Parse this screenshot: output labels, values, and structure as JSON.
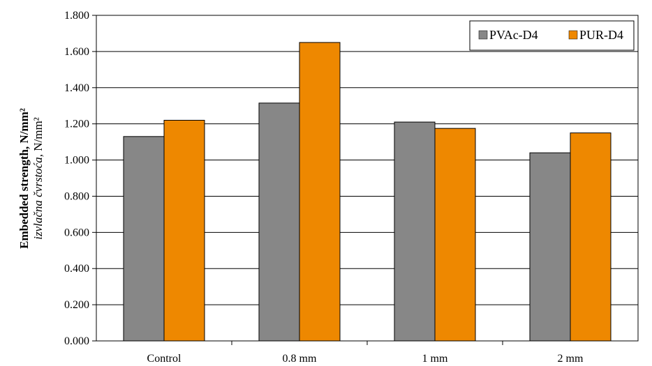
{
  "chart_data": {
    "type": "bar",
    "categories": [
      "Control",
      "0.8 mm",
      "1 mm",
      "2 mm"
    ],
    "series": [
      {
        "name": "PVAc-D4",
        "values": [
          1.13,
          1.315,
          1.21,
          1.04
        ],
        "color": "#878787"
      },
      {
        "name": "PUR-D4",
        "values": [
          1.22,
          1.65,
          1.175,
          1.15
        ],
        "color": "#ee8800"
      }
    ],
    "ylabel_bold": "Embedded strength, N/mm²",
    "ylabel_italic_word": "izvlačna čvrstoća,",
    "ylabel_unit": " N/mm²",
    "ylim": [
      0,
      1.8
    ],
    "yticks": [
      0,
      0.2,
      0.4,
      0.6,
      0.8,
      1.0,
      1.2,
      1.4,
      1.6,
      1.8
    ],
    "ytick_labels": [
      "0.000",
      "0.200",
      "0.400",
      "0.600",
      "0.800",
      "1.000",
      "1.200",
      "1.400",
      "1.600",
      "1.800"
    ],
    "grid": "horizontal",
    "legend": "top-right"
  }
}
